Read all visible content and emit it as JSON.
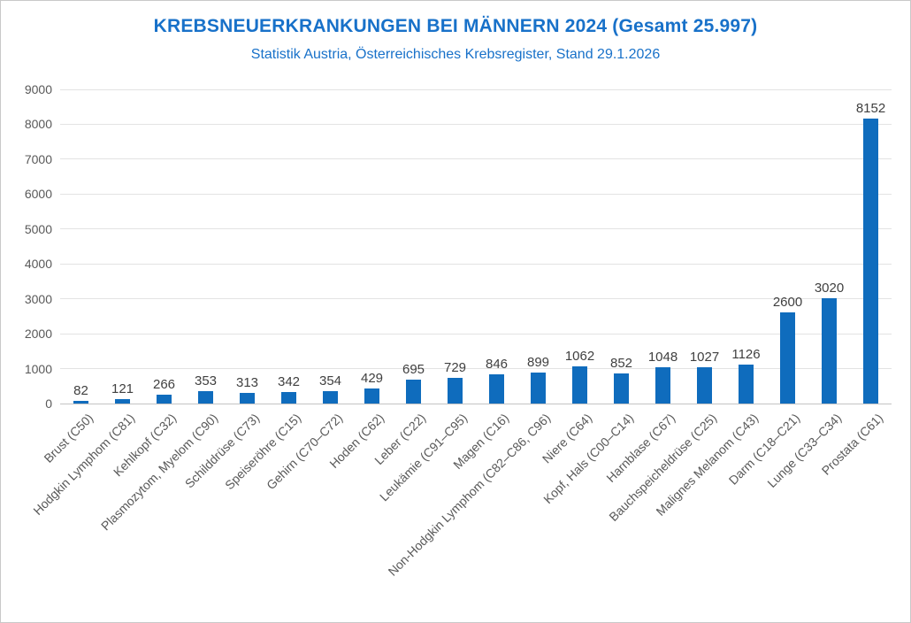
{
  "chart_data": {
    "type": "bar",
    "title": "KREBSNEUERKRANKUNGEN BEI MÄNNERN 2024 (Gesamt 25.997)",
    "subtitle": "Statistik Austria, Österreichisches Krebsregister, Stand 29.1.2026",
    "categories": [
      "Brust (C50)",
      "Hodgkin Lymphom (C81)",
      "Kehlkopf (C32)",
      "Plasmozytom, Myelom (C90)",
      "Schilddrüse (C73)",
      "Speiseröhre (C15)",
      "Gehirn (C70–C72)",
      "Hoden (C62)",
      "Leber (C22)",
      "Leukämie (C91–C95)",
      "Magen (C16)",
      "Non-Hodgkin Lymphom (C82–C86, C96)",
      "Niere (C64)",
      "Kopf, Hals (C00–C14)",
      "Harnblase (C67)",
      "Bauchspeicheldrüse (C25)",
      "Malignes Melanom (C43)",
      "Darm (C18–C21)",
      "Lunge (C33–C34)",
      "Prostata (C61)"
    ],
    "values": [
      82,
      121,
      266,
      353,
      313,
      342,
      354,
      429,
      695,
      729,
      846,
      899,
      1062,
      852,
      1048,
      1027,
      1126,
      2600,
      3020,
      8152
    ],
    "xlabel": "",
    "ylabel": "",
    "ylim": [
      0,
      9000
    ],
    "yticks": [
      0,
      1000,
      2000,
      3000,
      4000,
      5000,
      6000,
      7000,
      8000,
      9000
    ],
    "grid": true,
    "legend": "none",
    "bar_color": "#0f6cbd",
    "title_color": "#1871c9",
    "axis_label_color": "#595959",
    "value_label_color": "#404040",
    "gridline_color": "#e3e3e3"
  }
}
